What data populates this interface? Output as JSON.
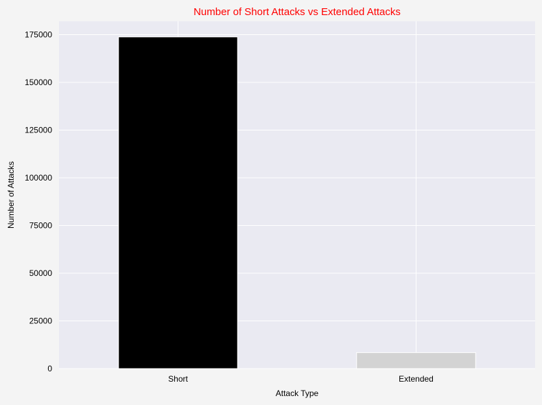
{
  "chart_data": {
    "type": "bar",
    "title": "Number of Short Attacks vs Extended Attacks",
    "xlabel": "Attack Type",
    "ylabel": "Number of Attacks",
    "categories": [
      "Short",
      "Extended"
    ],
    "values": [
      173800,
      8400
    ],
    "bar_colors": [
      "#000000",
      "#d3d3d3"
    ],
    "ylim": [
      0,
      182000
    ],
    "yticks": [
      0,
      25000,
      50000,
      75000,
      100000,
      125000,
      150000,
      175000
    ],
    "grid": true,
    "legend": "none"
  },
  "colors": {
    "title": "#ff0000",
    "plot_background": "#eaeaf2",
    "page_background": "#f4f4f4",
    "grid": "#ffffff"
  }
}
